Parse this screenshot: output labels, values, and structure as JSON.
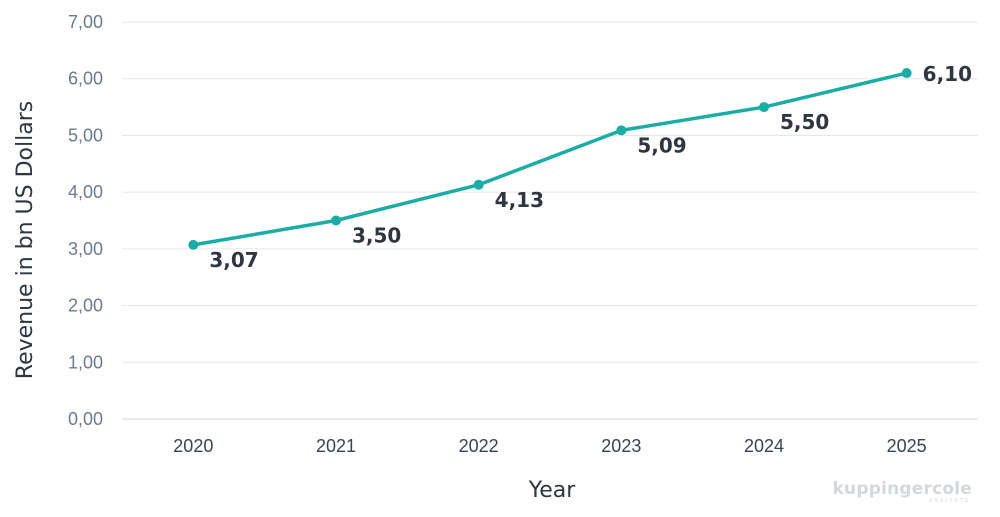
{
  "chart_data": {
    "type": "line",
    "categories": [
      "2020",
      "2021",
      "2022",
      "2023",
      "2024",
      "2025"
    ],
    "values": [
      3.07,
      3.5,
      4.13,
      5.09,
      5.5,
      6.1
    ],
    "data_labels": [
      "3,07",
      "3,50",
      "4,13",
      "5,09",
      "5,50",
      "6,10"
    ],
    "title": "",
    "xlabel": "Year",
    "ylabel": "Revenue in bn US Dollars",
    "ylim": [
      0,
      7
    ],
    "yticks": [
      "0,00",
      "1,00",
      "2,00",
      "3,00",
      "4,00",
      "5,00",
      "6,00",
      "7,00"
    ],
    "grid": true,
    "legend": "none"
  },
  "colors": {
    "line": "#1aada5",
    "grid": "#e3e6ea"
  },
  "watermark": {
    "text": "kuppingercole",
    "sub": "ANALYSTS"
  }
}
